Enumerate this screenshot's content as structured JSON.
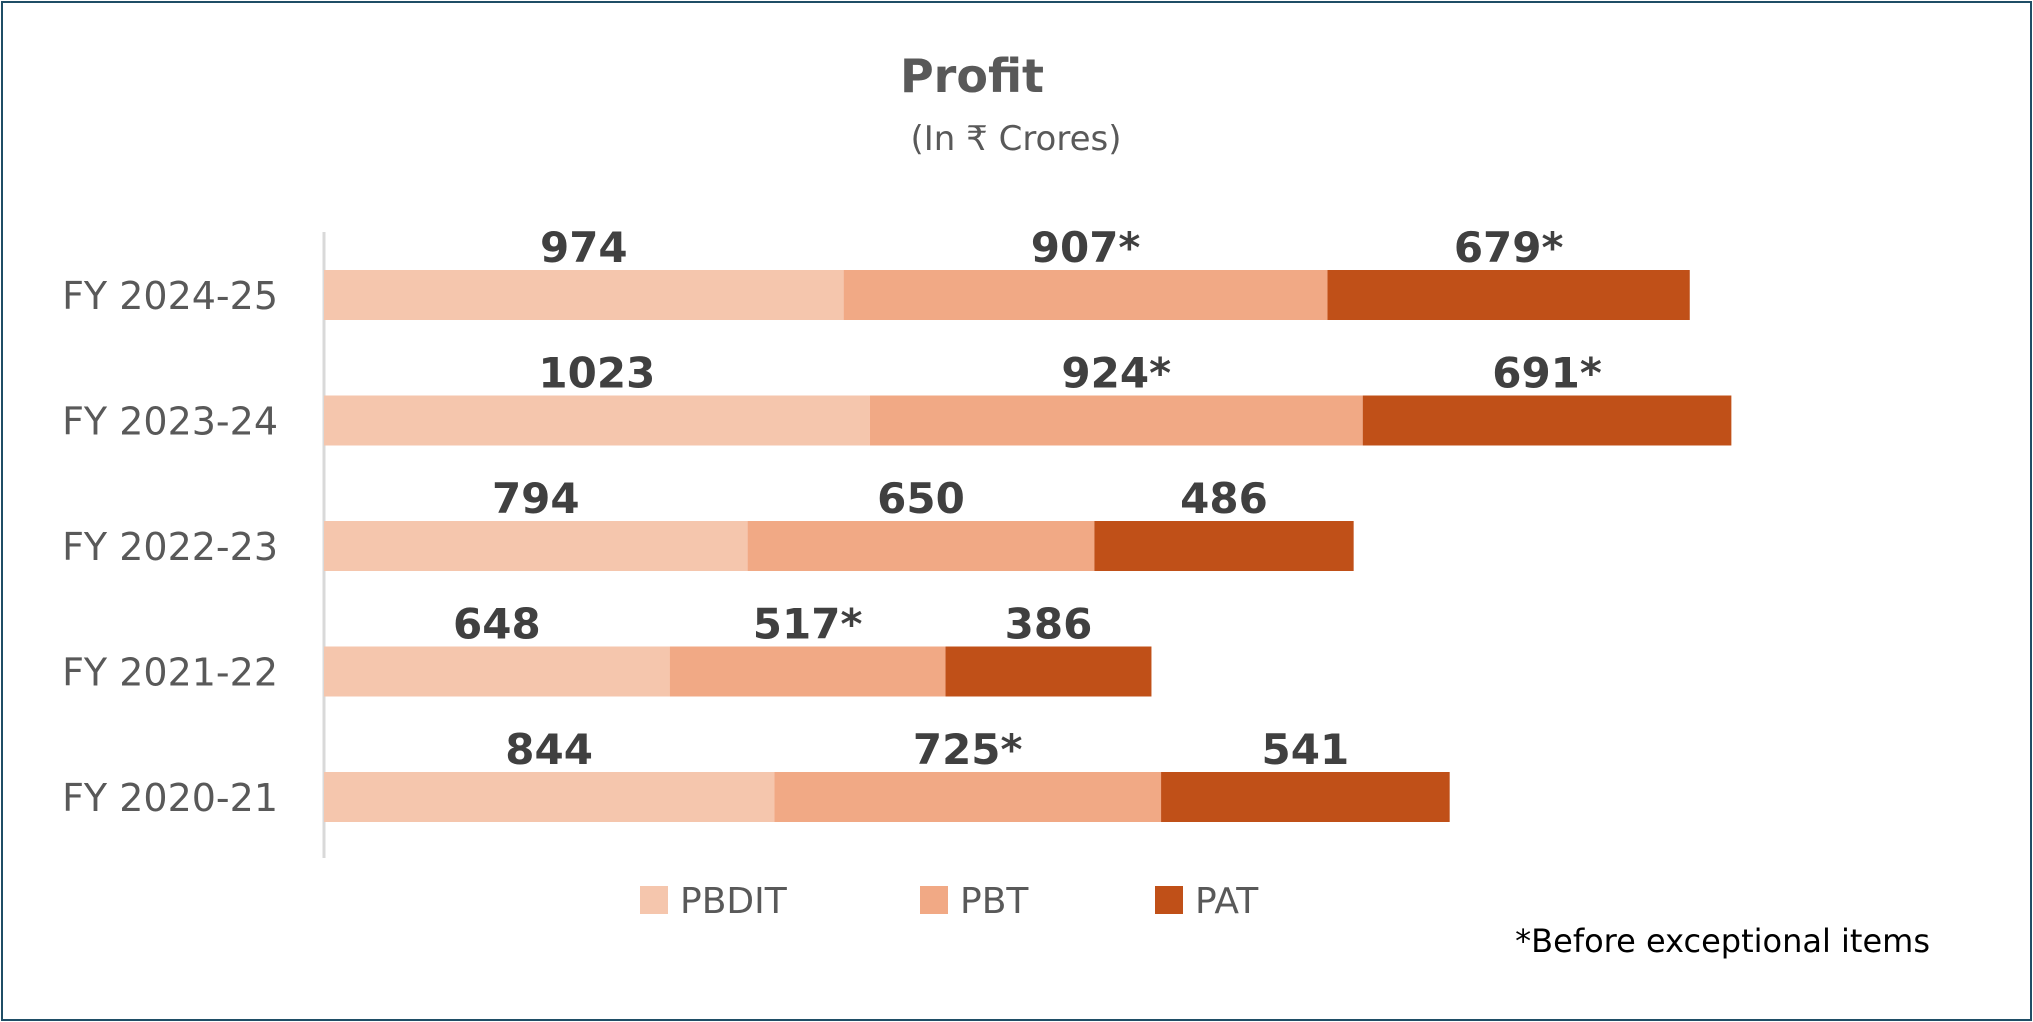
{
  "chart_data": {
    "type": "bar",
    "orientation": "horizontal",
    "stacked": true,
    "title": "Profit",
    "subtitle": "(In ₹ Crores)",
    "categories": [
      "FY 2024-25",
      "FY 2023-24",
      "FY 2022-23",
      "FY 2021-22",
      "FY 2020-21"
    ],
    "series": [
      {
        "name": "PBDIT",
        "color": "#f5c6ad",
        "values": [
          974,
          1023,
          794,
          648,
          844
        ],
        "labels": [
          "974",
          "1023",
          "794",
          "648",
          "844"
        ]
      },
      {
        "name": "PBT",
        "color": "#f1a985",
        "values": [
          907,
          924,
          650,
          517,
          725
        ],
        "labels": [
          "907*",
          "924*",
          "650",
          "517*",
          "725*"
        ]
      },
      {
        "name": "PAT",
        "color": "#c05018",
        "values": [
          679,
          691,
          486,
          386,
          541
        ],
        "labels": [
          "679*",
          "691*",
          "486",
          "386",
          "541"
        ]
      }
    ],
    "legend_position": "bottom",
    "grid": false,
    "footnote": "*Before exceptional items"
  }
}
